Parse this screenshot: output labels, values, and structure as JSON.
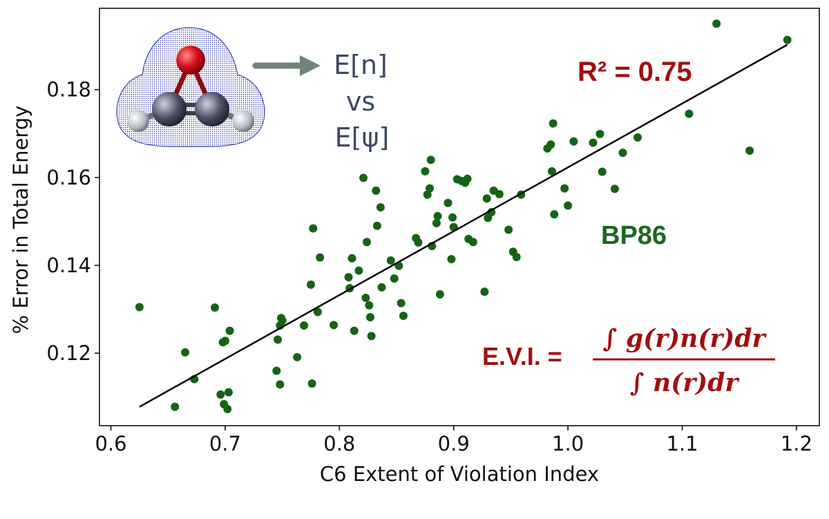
{
  "chart_data": {
    "type": "scatter",
    "xlabel": "C6 Extent of Violation Index",
    "ylabel": "% Error in Total Energy",
    "xlim": [
      0.59,
      1.22
    ],
    "ylim": [
      0.1035,
      0.1985
    ],
    "x_ticks": [
      0.6,
      0.7,
      0.8,
      0.9,
      1.0,
      1.1,
      1.2
    ],
    "x_tick_labels": [
      "0.6",
      "0.7",
      "0.8",
      "0.9",
      "1.0",
      "1.1",
      "1.2"
    ],
    "y_ticks": [
      0.12,
      0.14,
      0.16,
      0.18
    ],
    "y_tick_labels": [
      "0.12",
      "0.14",
      "0.16",
      "0.18"
    ],
    "grid": false,
    "colors": {
      "points": "#146414",
      "fit_line": "#000000"
    },
    "series": [
      {
        "points": [
          [
            0.625,
            0.1305
          ],
          [
            0.656,
            0.1078
          ],
          [
            0.665,
            0.1202
          ],
          [
            0.673,
            0.1141
          ],
          [
            0.691,
            0.1304
          ],
          [
            0.696,
            0.1106
          ],
          [
            0.698,
            0.1225
          ],
          [
            0.699,
            0.1084
          ],
          [
            0.7,
            0.1228
          ],
          [
            0.702,
            0.1073
          ],
          [
            0.703,
            0.1111
          ],
          [
            0.704,
            0.1251
          ],
          [
            0.745,
            0.116
          ],
          [
            0.746,
            0.1231
          ],
          [
            0.748,
            0.1263
          ],
          [
            0.748,
            0.1129
          ],
          [
            0.749,
            0.128
          ],
          [
            0.75,
            0.1274
          ],
          [
            0.763,
            0.1191
          ],
          [
            0.769,
            0.1263
          ],
          [
            0.775,
            0.1356
          ],
          [
            0.776,
            0.1131
          ],
          [
            0.777,
            0.1484
          ],
          [
            0.781,
            0.1294
          ],
          [
            0.783,
            0.1418
          ],
          [
            0.795,
            0.1264
          ],
          [
            0.808,
            0.1373
          ],
          [
            0.809,
            0.1348
          ],
          [
            0.811,
            0.1416
          ],
          [
            0.813,
            0.1251
          ],
          [
            0.817,
            0.1388
          ],
          [
            0.821,
            0.1599
          ],
          [
            0.823,
            0.1326
          ],
          [
            0.824,
            0.1453
          ],
          [
            0.826,
            0.1309
          ],
          [
            0.827,
            0.1282
          ],
          [
            0.828,
            0.1239
          ],
          [
            0.832,
            0.157
          ],
          [
            0.833,
            0.149
          ],
          [
            0.836,
            0.1532
          ],
          [
            0.837,
            0.135
          ],
          [
            0.845,
            0.1411
          ],
          [
            0.848,
            0.137
          ],
          [
            0.852,
            0.1399
          ],
          [
            0.854,
            0.1314
          ],
          [
            0.856,
            0.1285
          ],
          [
            0.867,
            0.1462
          ],
          [
            0.869,
            0.1452
          ],
          [
            0.875,
            0.1614
          ],
          [
            0.877,
            0.1561
          ],
          [
            0.879,
            0.1575
          ],
          [
            0.88,
            0.164
          ],
          [
            0.881,
            0.1444
          ],
          [
            0.885,
            0.1496
          ],
          [
            0.886,
            0.1512
          ],
          [
            0.888,
            0.1334
          ],
          [
            0.895,
            0.1542
          ],
          [
            0.898,
            0.1414
          ],
          [
            0.899,
            0.1509
          ],
          [
            0.9,
            0.1487
          ],
          [
            0.903,
            0.1596
          ],
          [
            0.907,
            0.1592
          ],
          [
            0.91,
            0.1588
          ],
          [
            0.912,
            0.1597
          ],
          [
            0.913,
            0.146
          ],
          [
            0.917,
            0.1453
          ],
          [
            0.927,
            0.134
          ],
          [
            0.929,
            0.1552
          ],
          [
            0.93,
            0.1508
          ],
          [
            0.933,
            0.1521
          ],
          [
            0.935,
            0.157
          ],
          [
            0.94,
            0.1562
          ],
          [
            0.948,
            0.1481
          ],
          [
            0.952,
            0.1431
          ],
          [
            0.955,
            0.1419
          ],
          [
            0.959,
            0.1561
          ],
          [
            0.982,
            0.1666
          ],
          [
            0.985,
            0.1675
          ],
          [
            0.986,
            0.1614
          ],
          [
            0.987,
            0.1723
          ],
          [
            0.988,
            0.1516
          ],
          [
            0.997,
            0.1575
          ],
          [
            1.0,
            0.1536
          ],
          [
            1.005,
            0.1682
          ],
          [
            1.022,
            0.1679
          ],
          [
            1.028,
            0.1699
          ],
          [
            1.03,
            0.1613
          ],
          [
            1.041,
            0.1574
          ],
          [
            1.048,
            0.1656
          ],
          [
            1.061,
            0.1691
          ],
          [
            1.106,
            0.1745
          ],
          [
            1.13,
            0.195
          ],
          [
            1.159,
            0.1661
          ],
          [
            1.192,
            0.1913
          ]
        ]
      }
    ],
    "fit_line": [
      [
        0.625,
        0.1078
      ],
      [
        1.192,
        0.1902
      ]
    ],
    "annotations": {
      "r2": "R² = 0.75",
      "functional": "BP86",
      "side_label_top": "E[n]",
      "side_label_mid": "vs",
      "side_label_bot": "E[ψ]",
      "evi_lhs": "E.V.I. =",
      "evi_numerator": "∫ g(r)n(r)dr",
      "evi_denominator": "∫ n(r)dr"
    }
  }
}
